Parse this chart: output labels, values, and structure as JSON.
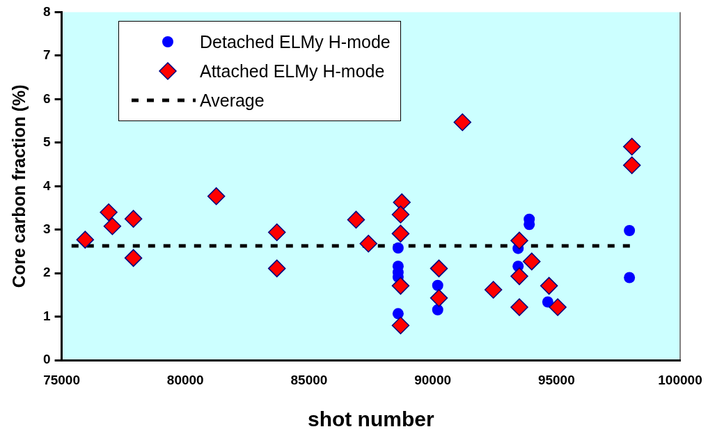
{
  "chart_data": {
    "type": "scatter",
    "xlabel": "shot number",
    "ylabel": "Core carbon fraction (%)",
    "xlim": [
      75000,
      100000
    ],
    "xticks": [
      75000,
      80000,
      85000,
      90000,
      95000,
      100000
    ],
    "ylim": [
      0,
      8
    ],
    "yticks": [
      0,
      1,
      2,
      3,
      4,
      5,
      6,
      7,
      8
    ],
    "grid": false,
    "legend": "top left",
    "series": [
      {
        "name": "Detached ELMy H-mode",
        "color": "#0000ff",
        "marker": "circle",
        "x": [
          88600,
          88600,
          88600,
          88600,
          88600,
          90200,
          90200,
          93450,
          93450,
          93900,
          93900,
          94650,
          97950,
          97950
        ],
        "values": [
          2.58,
          2.16,
          2.02,
          1.91,
          1.07,
          1.72,
          1.16,
          2.57,
          2.16,
          3.24,
          3.12,
          1.34,
          2.98,
          1.9
        ]
      },
      {
        "name": "Attached ELMy H-mode",
        "color": "#ff0000",
        "marker": "diamond",
        "x": [
          75950,
          76900,
          77050,
          77900,
          77900,
          81250,
          83700,
          83700,
          86900,
          87400,
          88750,
          88700,
          88700,
          88700,
          88700,
          90250,
          90250,
          91200,
          92450,
          93500,
          94000,
          93500,
          93500,
          94700,
          95050,
          98050,
          98050
        ],
        "values": [
          2.77,
          3.4,
          3.08,
          3.25,
          2.35,
          3.77,
          2.94,
          2.11,
          3.23,
          2.68,
          3.63,
          3.35,
          2.91,
          1.71,
          0.8,
          2.11,
          1.43,
          5.47,
          1.62,
          2.75,
          2.27,
          1.93,
          1.22,
          1.71,
          1.22,
          4.91,
          4.48
        ]
      },
      {
        "name": "Average",
        "type": "line",
        "color": "#000000",
        "line_style": "dashed",
        "marker": "none",
        "x": [
          75400,
          98000
        ],
        "values": [
          2.63,
          2.63
        ]
      }
    ]
  }
}
